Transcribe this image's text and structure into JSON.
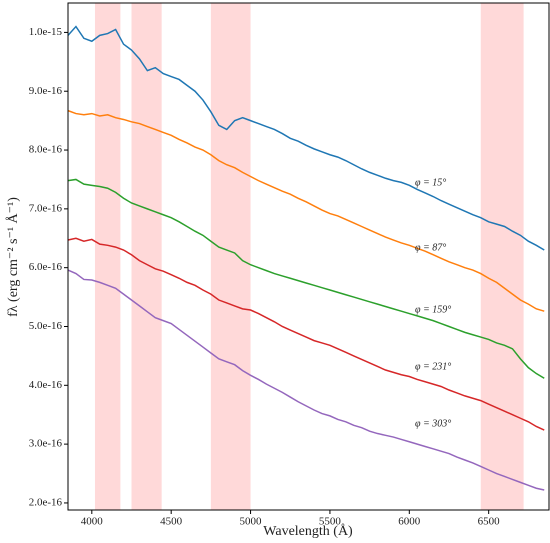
{
  "chart_data": {
    "type": "line",
    "xlabel": "Wavelength (Å)",
    "ylabel": "fλ (erg cm⁻² s⁻¹ Å⁻¹)",
    "x": [
      3850,
      3900,
      3950,
      4000,
      4050,
      4100,
      4150,
      4200,
      4250,
      4300,
      4350,
      4400,
      4450,
      4500,
      4550,
      4600,
      4650,
      4700,
      4750,
      4800,
      4850,
      4900,
      4950,
      5000,
      5050,
      5100,
      5150,
      5200,
      5250,
      5300,
      5350,
      5400,
      5450,
      5500,
      5550,
      5600,
      5650,
      5700,
      5750,
      5800,
      5850,
      5900,
      5950,
      6000,
      6050,
      6100,
      6150,
      6200,
      6250,
      6300,
      6350,
      6400,
      6450,
      6500,
      6550,
      6600,
      6650,
      6700,
      6750,
      6800,
      6850
    ],
    "series": [
      {
        "name": "φ = 15°",
        "color": "#1f77b4",
        "values": [
          9.95e-16,
          1.01e-15,
          9.9e-16,
          9.85e-16,
          9.95e-16,
          9.98e-16,
          1.005e-15,
          9.8e-16,
          9.7e-16,
          9.55e-16,
          9.35e-16,
          9.4e-16,
          9.3e-16,
          9.25e-16,
          9.2e-16,
          9.1e-16,
          9e-16,
          8.85e-16,
          8.65e-16,
          8.42e-16,
          8.35e-16,
          8.5e-16,
          8.55e-16,
          8.5e-16,
          8.45e-16,
          8.4e-16,
          8.35e-16,
          8.28e-16,
          8.2e-16,
          8.15e-16,
          8.08e-16,
          8.02e-16,
          7.97e-16,
          7.92e-16,
          7.88e-16,
          7.82e-16,
          7.75e-16,
          7.68e-16,
          7.62e-16,
          7.57e-16,
          7.52e-16,
          7.48e-16,
          7.45e-16,
          7.4e-16,
          7.33e-16,
          7.27e-16,
          7.21e-16,
          7.14e-16,
          7.08e-16,
          7.02e-16,
          6.96e-16,
          6.9e-16,
          6.85e-16,
          6.78e-16,
          6.74e-16,
          6.7e-16,
          6.62e-16,
          6.55e-16,
          6.45e-16,
          6.38e-16,
          6.3e-16
        ]
      },
      {
        "name": "φ = 87°",
        "color": "#ff7f0e",
        "values": [
          8.67e-16,
          8.62e-16,
          8.6e-16,
          8.62e-16,
          8.58e-16,
          8.6e-16,
          8.55e-16,
          8.52e-16,
          8.48e-16,
          8.45e-16,
          8.4e-16,
          8.35e-16,
          8.3e-16,
          8.25e-16,
          8.18e-16,
          8.12e-16,
          8.05e-16,
          8e-16,
          7.92e-16,
          7.82e-16,
          7.75e-16,
          7.7e-16,
          7.62e-16,
          7.55e-16,
          7.48e-16,
          7.42e-16,
          7.36e-16,
          7.3e-16,
          7.25e-16,
          7.18e-16,
          7.12e-16,
          7.05e-16,
          6.98e-16,
          6.92e-16,
          6.88e-16,
          6.82e-16,
          6.76e-16,
          6.7e-16,
          6.64e-16,
          6.58e-16,
          6.52e-16,
          6.47e-16,
          6.42e-16,
          6.38e-16,
          6.33e-16,
          6.28e-16,
          6.22e-16,
          6.16e-16,
          6.1e-16,
          6.05e-16,
          6e-16,
          5.96e-16,
          5.9e-16,
          5.82e-16,
          5.75e-16,
          5.65e-16,
          5.55e-16,
          5.45e-16,
          5.38e-16,
          5.3e-16,
          5.26e-16
        ]
      },
      {
        "name": "φ = 159°",
        "color": "#2ca02c",
        "values": [
          7.48e-16,
          7.5e-16,
          7.42e-16,
          7.4e-16,
          7.38e-16,
          7.35e-16,
          7.28e-16,
          7.18e-16,
          7.1e-16,
          7.05e-16,
          7e-16,
          6.95e-16,
          6.9e-16,
          6.85e-16,
          6.78e-16,
          6.7e-16,
          6.62e-16,
          6.55e-16,
          6.45e-16,
          6.35e-16,
          6.3e-16,
          6.25e-16,
          6.12e-16,
          6.05e-16,
          6e-16,
          5.95e-16,
          5.9e-16,
          5.86e-16,
          5.82e-16,
          5.78e-16,
          5.74e-16,
          5.7e-16,
          5.66e-16,
          5.62e-16,
          5.58e-16,
          5.54e-16,
          5.5e-16,
          5.46e-16,
          5.42e-16,
          5.38e-16,
          5.34e-16,
          5.3e-16,
          5.26e-16,
          5.22e-16,
          5.18e-16,
          5.14e-16,
          5.1e-16,
          5.05e-16,
          5e-16,
          4.95e-16,
          4.9e-16,
          4.86e-16,
          4.82e-16,
          4.78e-16,
          4.72e-16,
          4.68e-16,
          4.62e-16,
          4.45e-16,
          4.3e-16,
          4.2e-16,
          4.12e-16
        ]
      },
      {
        "name": "φ = 231°",
        "color": "#d62728",
        "values": [
          6.47e-16,
          6.5e-16,
          6.45e-16,
          6.48e-16,
          6.4e-16,
          6.38e-16,
          6.35e-16,
          6.3e-16,
          6.22e-16,
          6.12e-16,
          6.05e-16,
          5.98e-16,
          5.94e-16,
          5.88e-16,
          5.82e-16,
          5.75e-16,
          5.7e-16,
          5.62e-16,
          5.55e-16,
          5.45e-16,
          5.4e-16,
          5.35e-16,
          5.3e-16,
          5.28e-16,
          5.22e-16,
          5.15e-16,
          5.08e-16,
          5e-16,
          4.94e-16,
          4.88e-16,
          4.82e-16,
          4.76e-16,
          4.72e-16,
          4.68e-16,
          4.62e-16,
          4.56e-16,
          4.5e-16,
          4.44e-16,
          4.38e-16,
          4.32e-16,
          4.26e-16,
          4.22e-16,
          4.18e-16,
          4.15e-16,
          4.1e-16,
          4.06e-16,
          4.02e-16,
          3.98e-16,
          3.92e-16,
          3.87e-16,
          3.82e-16,
          3.78e-16,
          3.74e-16,
          3.68e-16,
          3.62e-16,
          3.56e-16,
          3.5e-16,
          3.44e-16,
          3.38e-16,
          3.3e-16,
          3.24e-16
        ]
      },
      {
        "name": "φ = 303°",
        "color": "#9467bd",
        "values": [
          5.96e-16,
          5.9e-16,
          5.8e-16,
          5.79e-16,
          5.75e-16,
          5.7e-16,
          5.65e-16,
          5.55e-16,
          5.45e-16,
          5.35e-16,
          5.25e-16,
          5.15e-16,
          5.1e-16,
          5.05e-16,
          4.95e-16,
          4.85e-16,
          4.75e-16,
          4.65e-16,
          4.55e-16,
          4.45e-16,
          4.4e-16,
          4.35e-16,
          4.25e-16,
          4.17e-16,
          4.1e-16,
          4.02e-16,
          3.95e-16,
          3.88e-16,
          3.8e-16,
          3.72e-16,
          3.65e-16,
          3.58e-16,
          3.52e-16,
          3.48e-16,
          3.42e-16,
          3.38e-16,
          3.32e-16,
          3.28e-16,
          3.22e-16,
          3.18e-16,
          3.15e-16,
          3.12e-16,
          3.08e-16,
          3.04e-16,
          3e-16,
          2.96e-16,
          2.92e-16,
          2.88e-16,
          2.84e-16,
          2.78e-16,
          2.73e-16,
          2.68e-16,
          2.62e-16,
          2.56e-16,
          2.5e-16,
          2.45e-16,
          2.4e-16,
          2.35e-16,
          2.3e-16,
          2.25e-16,
          2.22e-16
        ]
      }
    ],
    "shaded_regions": [
      [
        4020,
        4180
      ],
      [
        4250,
        4440
      ],
      [
        4750,
        5000
      ],
      [
        6450,
        6720
      ]
    ],
    "shade_color": "#ffcccc",
    "xlim": [
      3850,
      6880
    ],
    "ylim": [
      1.88e-16,
      1.05e-15
    ],
    "xticks": [
      4000,
      4500,
      5000,
      5500,
      6000,
      6500
    ],
    "yticks": [
      {
        "value": 2e-16,
        "label": "2.0e-16"
      },
      {
        "value": 3e-16,
        "label": "3.0e-16"
      },
      {
        "value": 4e-16,
        "label": "4.0e-16"
      },
      {
        "value": 5e-16,
        "label": "5.0e-16"
      },
      {
        "value": 6e-16,
        "label": "6.0e-16"
      },
      {
        "value": 7e-16,
        "label": "7.0e-16"
      },
      {
        "value": 8e-16,
        "label": "8.0e-16"
      },
      {
        "value": 9e-16,
        "label": "9.0e-16"
      },
      {
        "value": 1e-15,
        "label": "1.0e-15"
      }
    ],
    "grid": false
  }
}
